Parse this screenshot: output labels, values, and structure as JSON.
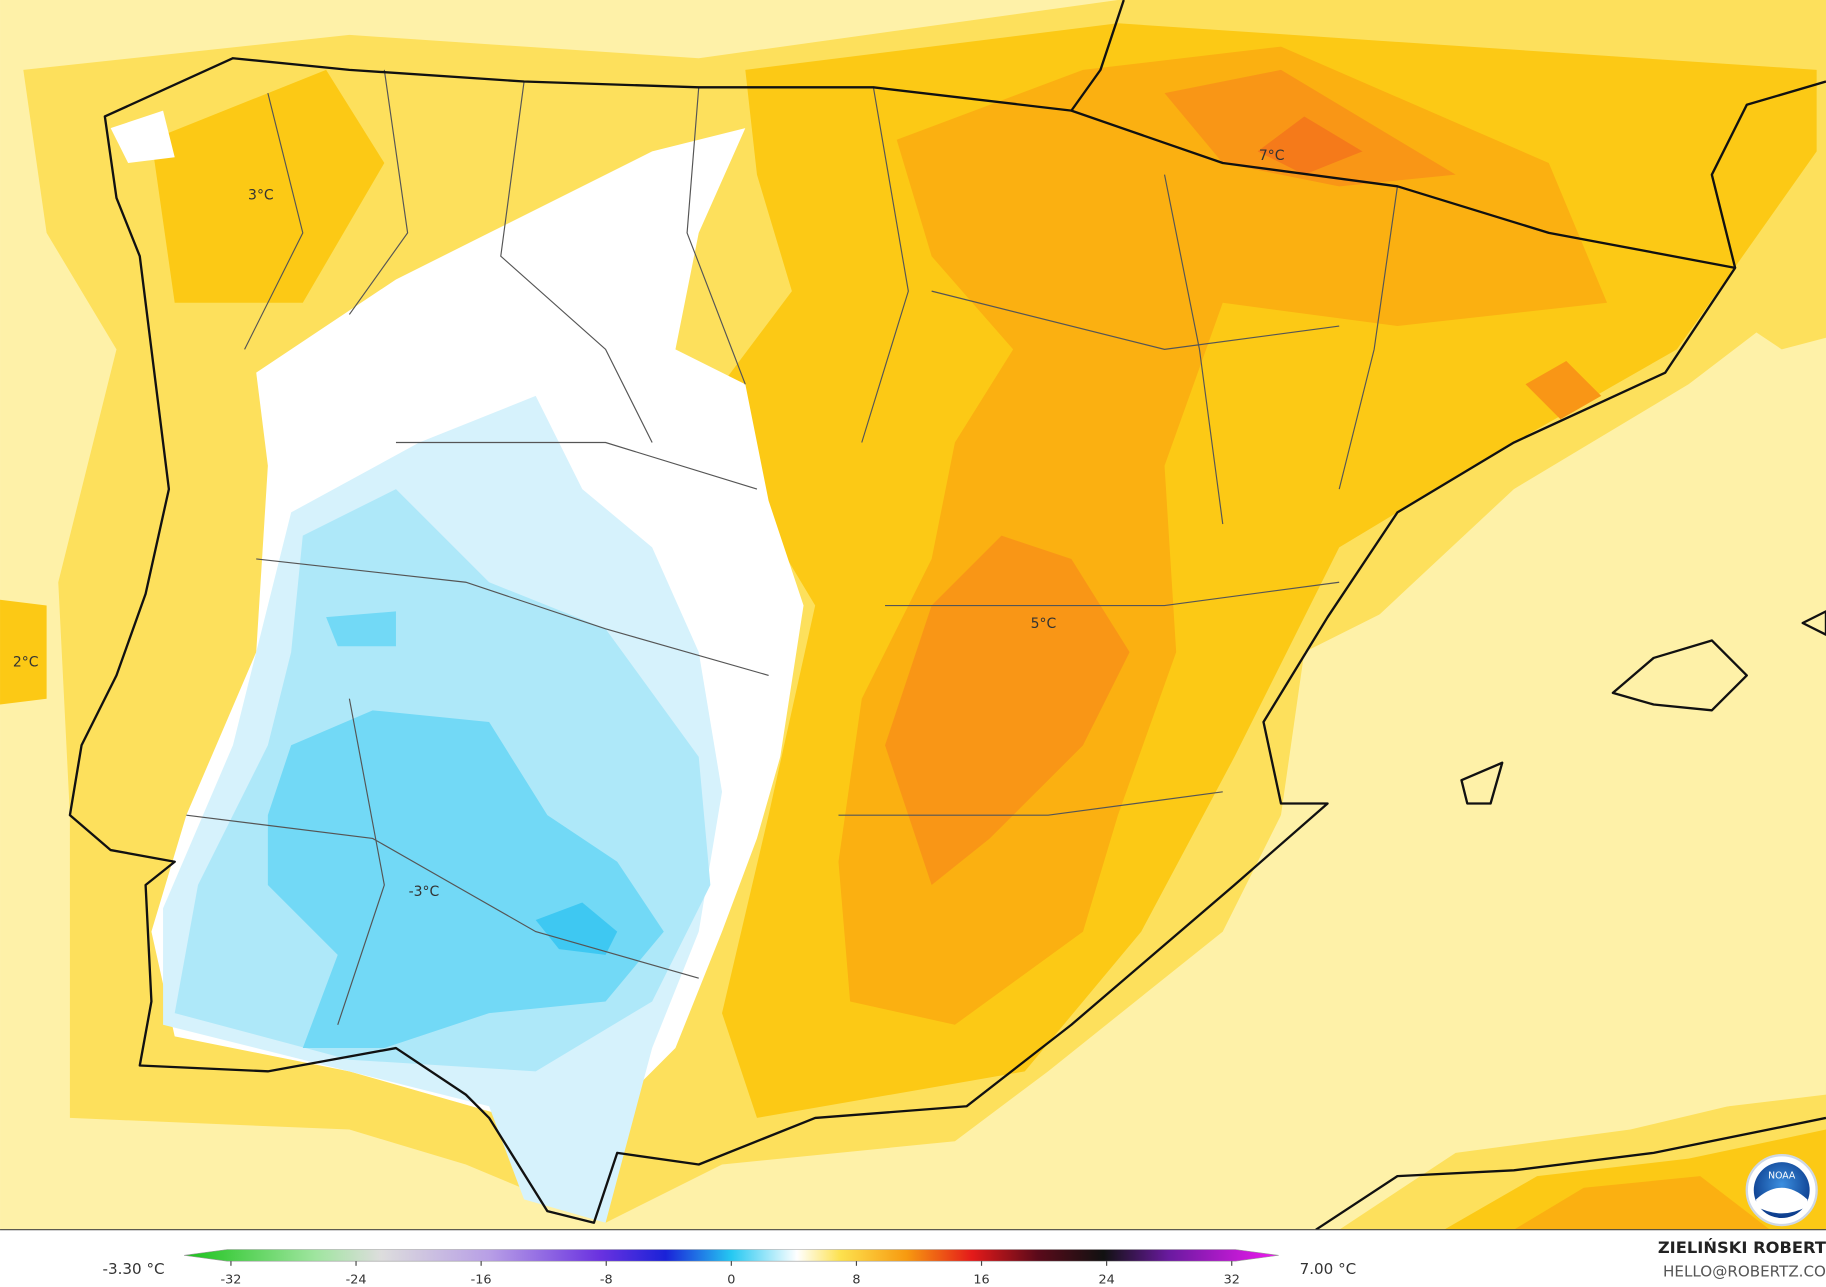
{
  "map": {
    "labels": [
      "3°C",
      "2°C",
      "7°C",
      "5°C",
      "-3°C"
    ]
  },
  "colorbar": {
    "min_label": "-3.30 °C",
    "max_label": "7.00 °C",
    "xlim": [
      -35,
      35
    ],
    "ticks": [
      -32,
      -24,
      -16,
      -8,
      0,
      8,
      16,
      24,
      32
    ]
  },
  "credit": {
    "author": "ZIELIŃSKI ROBERT",
    "contact": "HELLO@ROBERTZ.CO"
  },
  "logo": "NOAA"
}
